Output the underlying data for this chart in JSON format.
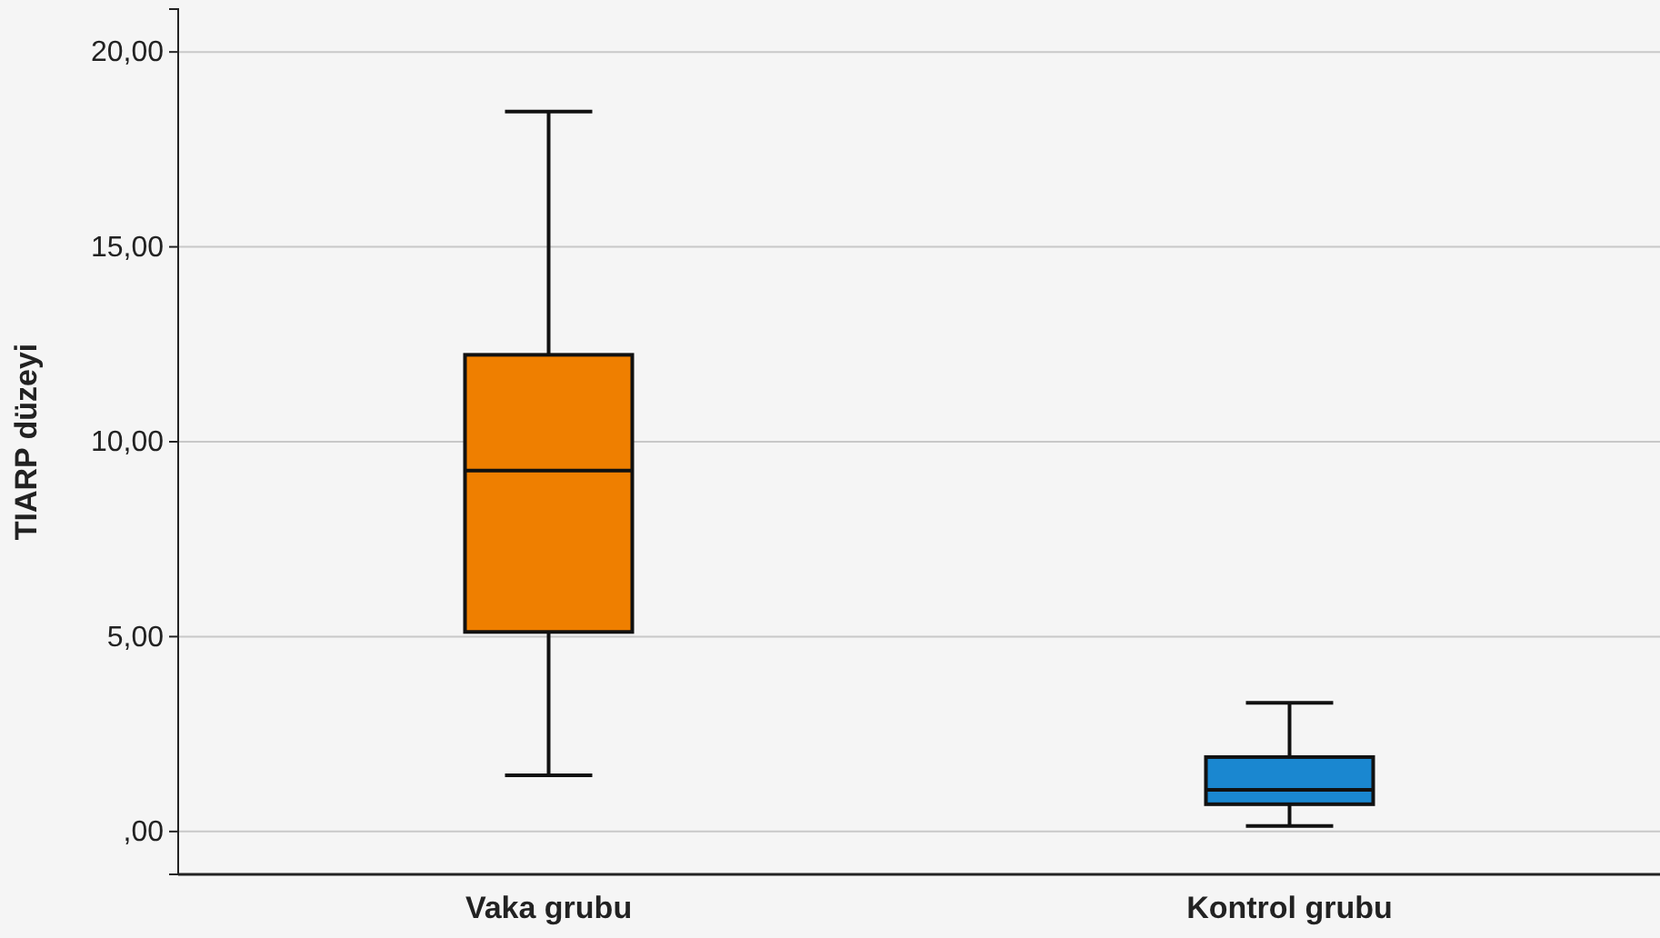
{
  "chart_data": {
    "type": "box",
    "ylabel": "TIARP düzeyi",
    "categories": [
      "Vaka grubu",
      "Kontrol grubu"
    ],
    "boxes": [
      {
        "low": 1.44,
        "q1": 5.12,
        "median": 9.26,
        "q3": 12.23,
        "high": 18.47
      },
      {
        "low": 0.14,
        "q1": 0.7,
        "median": 1.07,
        "q3": 1.91,
        "high": 3.3
      }
    ],
    "colors": [
      "#ef7f00",
      "#1a87d0"
    ],
    "ylim": [
      -1.1,
      21.1
    ],
    "yticks": [
      {
        "value": 0,
        "label": ",00"
      },
      {
        "value": 5,
        "label": "5,00"
      },
      {
        "value": 10,
        "label": "10,00"
      },
      {
        "value": 15,
        "label": "15,00"
      },
      {
        "value": 20,
        "label": "20,00"
      }
    ],
    "grid": "y"
  }
}
